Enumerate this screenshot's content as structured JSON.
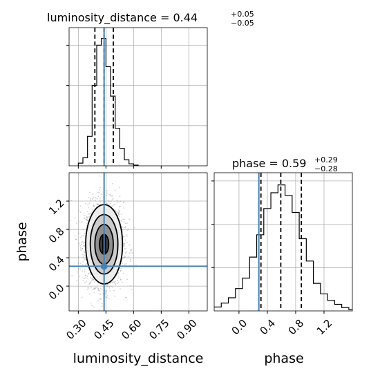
{
  "chart_data": {
    "type": "corner",
    "parameters": [
      "luminosity_distance",
      "phase"
    ],
    "truths": {
      "luminosity_distance": 0.44,
      "phase": 0.28
    },
    "colors": {
      "truth": "#4682b4",
      "hist": "#000000",
      "grid": "#b0b0b0",
      "scatter": "#7a7a7a"
    },
    "panels": [
      {
        "id": "luminosity_distance_marginal",
        "title_prefix": "luminosity_distance = 0.44",
        "title_sup": "+0.05",
        "title_sub": "−0.05",
        "median": 0.44,
        "quantiles": [
          0.39,
          0.44,
          0.49
        ],
        "xlim": [
          0.25,
          1.0
        ],
        "bins": [
          {
            "x0": 0.3,
            "x1": 0.325,
            "count": 0.02
          },
          {
            "x0": 0.325,
            "x1": 0.35,
            "count": 0.06
          },
          {
            "x0": 0.35,
            "x1": 0.375,
            "count": 0.22
          },
          {
            "x0": 0.375,
            "x1": 0.4,
            "count": 0.6
          },
          {
            "x0": 0.4,
            "x1": 0.425,
            "count": 0.9
          },
          {
            "x0": 0.425,
            "x1": 0.45,
            "count": 0.95
          },
          {
            "x0": 0.45,
            "x1": 0.475,
            "count": 0.74
          },
          {
            "x0": 0.475,
            "x1": 0.5,
            "count": 0.52
          },
          {
            "x0": 0.5,
            "x1": 0.525,
            "count": 0.28
          },
          {
            "x0": 0.525,
            "x1": 0.55,
            "count": 0.13
          },
          {
            "x0": 0.55,
            "x1": 0.575,
            "count": 0.045
          },
          {
            "x0": 0.575,
            "x1": 0.6,
            "count": 0.015
          },
          {
            "x0": 0.6,
            "x1": 0.625,
            "count": 0.005
          }
        ]
      },
      {
        "id": "phase_marginal",
        "title_prefix": "phase = 0.59",
        "title_sup": "+0.29",
        "title_sub": "−0.28",
        "median": 0.59,
        "quantiles": [
          0.31,
          0.59,
          0.88
        ],
        "xlim": [
          -0.35,
          1.6
        ],
        "bins": [
          {
            "x0": -0.35,
            "x1": -0.25,
            "count": 0.03
          },
          {
            "x0": -0.25,
            "x1": -0.15,
            "count": 0.06
          },
          {
            "x0": -0.15,
            "x1": -0.05,
            "count": 0.1
          },
          {
            "x0": -0.05,
            "x1": 0.05,
            "count": 0.17
          },
          {
            "x0": 0.05,
            "x1": 0.15,
            "count": 0.25
          },
          {
            "x0": 0.15,
            "x1": 0.25,
            "count": 0.41
          },
          {
            "x0": 0.25,
            "x1": 0.35,
            "count": 0.58
          },
          {
            "x0": 0.35,
            "x1": 0.45,
            "count": 0.78
          },
          {
            "x0": 0.45,
            "x1": 0.55,
            "count": 0.9
          },
          {
            "x0": 0.55,
            "x1": 0.65,
            "count": 0.96
          },
          {
            "x0": 0.65,
            "x1": 0.75,
            "count": 0.88
          },
          {
            "x0": 0.75,
            "x1": 0.85,
            "count": 0.75
          },
          {
            "x0": 0.85,
            "x1": 0.95,
            "count": 0.55
          },
          {
            "x0": 0.95,
            "x1": 1.05,
            "count": 0.38
          },
          {
            "x0": 1.05,
            "x1": 1.15,
            "count": 0.21
          },
          {
            "x0": 1.15,
            "x1": 1.25,
            "count": 0.13
          },
          {
            "x0": 1.25,
            "x1": 1.35,
            "count": 0.08
          },
          {
            "x0": 1.35,
            "x1": 1.45,
            "count": 0.05
          },
          {
            "x0": 1.45,
            "x1": 1.55,
            "count": 0.025
          },
          {
            "x0": 1.55,
            "x1": 1.6,
            "count": 0.01
          }
        ]
      },
      {
        "id": "joint",
        "xlim": [
          0.25,
          1.0
        ],
        "ylim": [
          -0.35,
          1.6
        ],
        "center": [
          0.44,
          0.59
        ],
        "sigma": [
          0.05,
          0.28
        ],
        "contour_levels": [
          0.5,
          1.0,
          1.5,
          2.0
        ]
      }
    ],
    "xticks": {
      "luminosity_distance": [
        "0.30",
        "0.45",
        "0.60",
        "0.75",
        "0.90"
      ],
      "phase": [
        "0.0",
        "0.4",
        "0.8",
        "1.2"
      ]
    },
    "xtick_values": {
      "luminosity_distance": [
        0.3,
        0.45,
        0.6,
        0.75,
        0.9
      ],
      "phase": [
        0.0,
        0.4,
        0.8,
        1.2
      ]
    },
    "yticks": {
      "phase": [
        "0.0",
        "0.4",
        "0.8",
        "1.2"
      ]
    },
    "ytick_values": {
      "phase": [
        0.0,
        0.4,
        0.8,
        1.2
      ]
    },
    "axis_labels": {
      "bottom_left": "luminosity_distance",
      "bottom_right": "phase",
      "left": "phase"
    },
    "grid": true
  }
}
